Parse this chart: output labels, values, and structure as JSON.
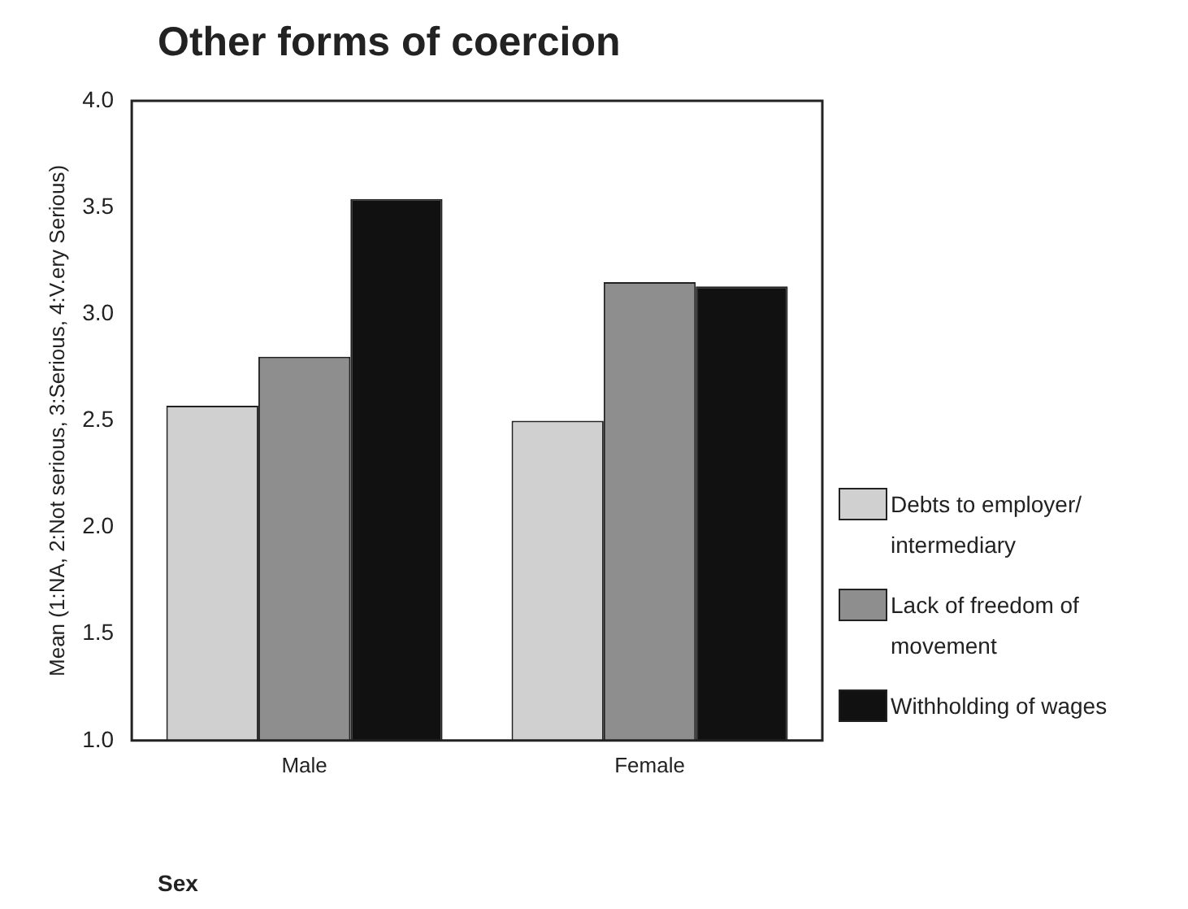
{
  "chart_data": {
    "type": "bar",
    "title": "Other forms of coercion",
    "xlabel": "Sex",
    "ylabel": "Mean (1:NA, 2:Not serious, 3:Serious, 4:V.ery Serious)",
    "categories": [
      "Male",
      "Female"
    ],
    "series": [
      {
        "name": "Debts to employer/ intermediary",
        "color": "#d0d0d0",
        "values": [
          2.57,
          2.5
        ]
      },
      {
        "name": "Lack of freedom of movement",
        "color": "#8e8e8e",
        "values": [
          2.8,
          3.15
        ]
      },
      {
        "name": "Withholding of wages",
        "color": "#111111",
        "values": [
          3.54,
          3.13
        ]
      }
    ],
    "ylim": [
      1,
      4
    ],
    "yticks": [
      {
        "value": 1,
        "label": "1.0"
      },
      1.5,
      {
        "value": 2,
        "label": "2.0"
      },
      2.5,
      {
        "value": 3,
        "label": "3.0"
      },
      3.5,
      {
        "value": 4,
        "label": "4.0"
      }
    ],
    "grid": false,
    "legend": "right"
  }
}
